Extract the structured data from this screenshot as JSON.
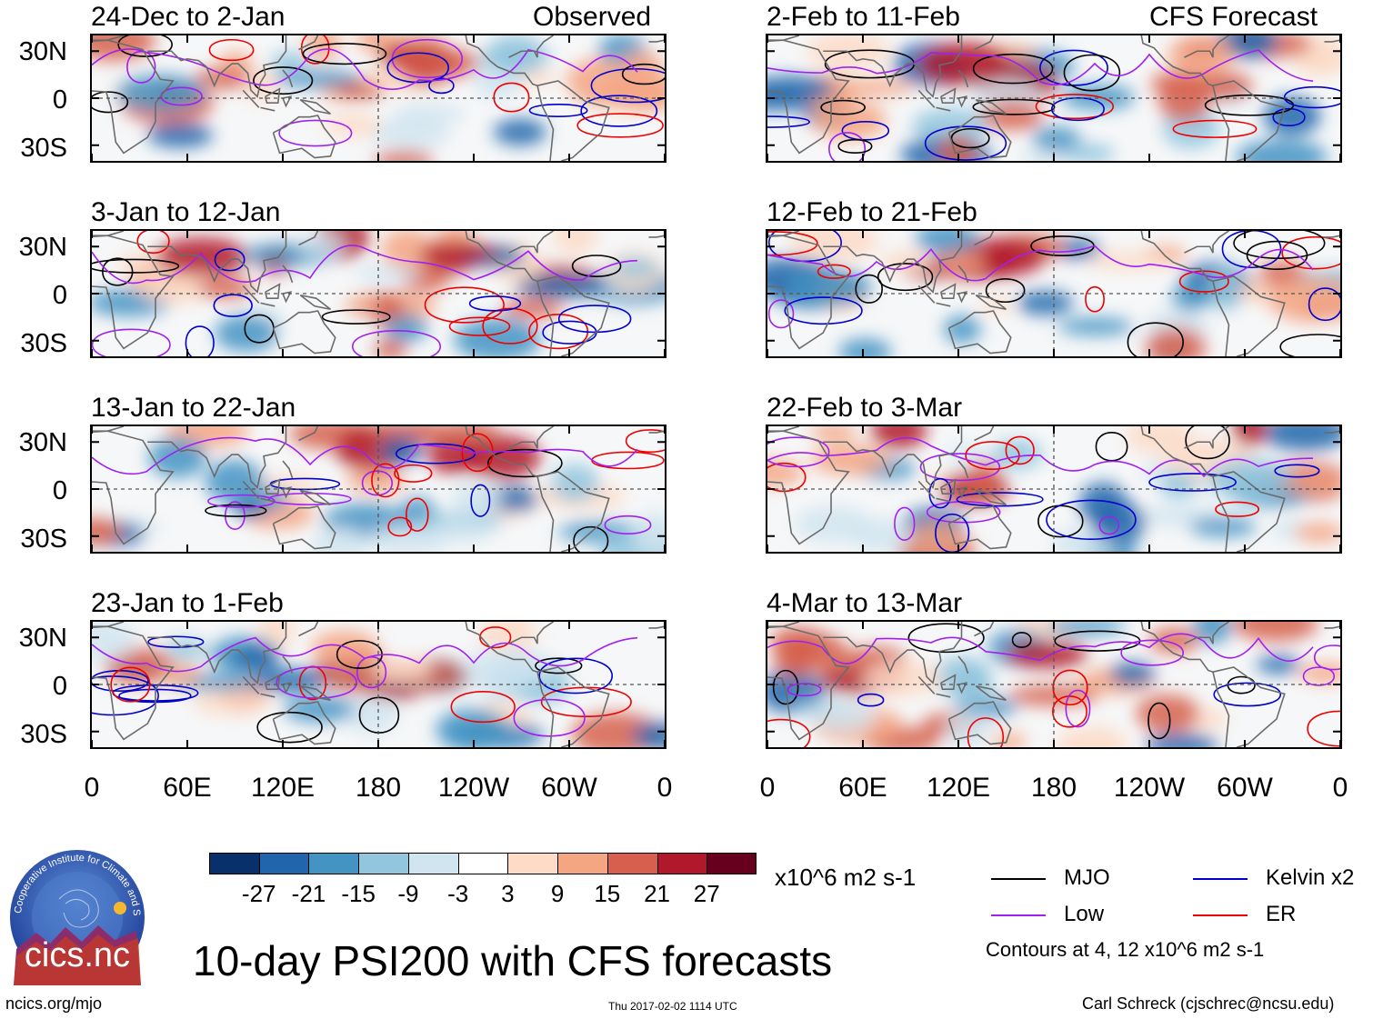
{
  "headers": {
    "observed": "Observed",
    "forecast": "CFS Forecast"
  },
  "panels": [
    {
      "title": "24-Dec to 2-Jan"
    },
    {
      "title": "3-Jan to 12-Jan"
    },
    {
      "title": "13-Jan to 22-Jan"
    },
    {
      "title": "23-Jan to 1-Feb"
    },
    {
      "title": "2-Feb to 11-Feb"
    },
    {
      "title": "12-Feb to 21-Feb"
    },
    {
      "title": "22-Feb to 3-Mar"
    },
    {
      "title": "4-Mar to 13-Mar"
    }
  ],
  "chart_data": {
    "type": "heatmap",
    "title": "10-day PSI200 with CFS forecasts",
    "variable": "PSI200 anomaly",
    "units": "x10^6 m2 s-1",
    "y_ticks": [
      "30N",
      "0",
      "30S"
    ],
    "x_ticks": [
      "0",
      "60E",
      "120E",
      "180",
      "120W",
      "60W",
      "0"
    ],
    "colorbar": {
      "levels": [
        "-27",
        "-21",
        "-15",
        "-9",
        "-3",
        "3",
        "9",
        "15",
        "21",
        "27"
      ],
      "colors": [
        "#08306b",
        "#2166ac",
        "#4393c3",
        "#92c5de",
        "#d1e5f0",
        "#ffffff",
        "#fddbc7",
        "#f4a582",
        "#d6604d",
        "#b2182b",
        "#67001f"
      ]
    },
    "legend": [
      {
        "label": "MJO",
        "color": "#000000"
      },
      {
        "label": "Kelvin x2",
        "color": "#0000cc"
      },
      {
        "label": "Low",
        "color": "#a020f0"
      },
      {
        "label": "ER",
        "color": "#ee0000"
      }
    ],
    "contour_note": "Contours at 4, 12 x10^6 m2 s-1"
  },
  "footer": {
    "left": "ncics.org/mjo",
    "center": "Thu 2017-02-02 1114 UTC",
    "right": "Carl Schreck (cjschrec@ncsu.edu)"
  },
  "logo": {
    "text": "cics.nc",
    "ring_text": "Cooperative Institute for Climate and Satellites"
  }
}
